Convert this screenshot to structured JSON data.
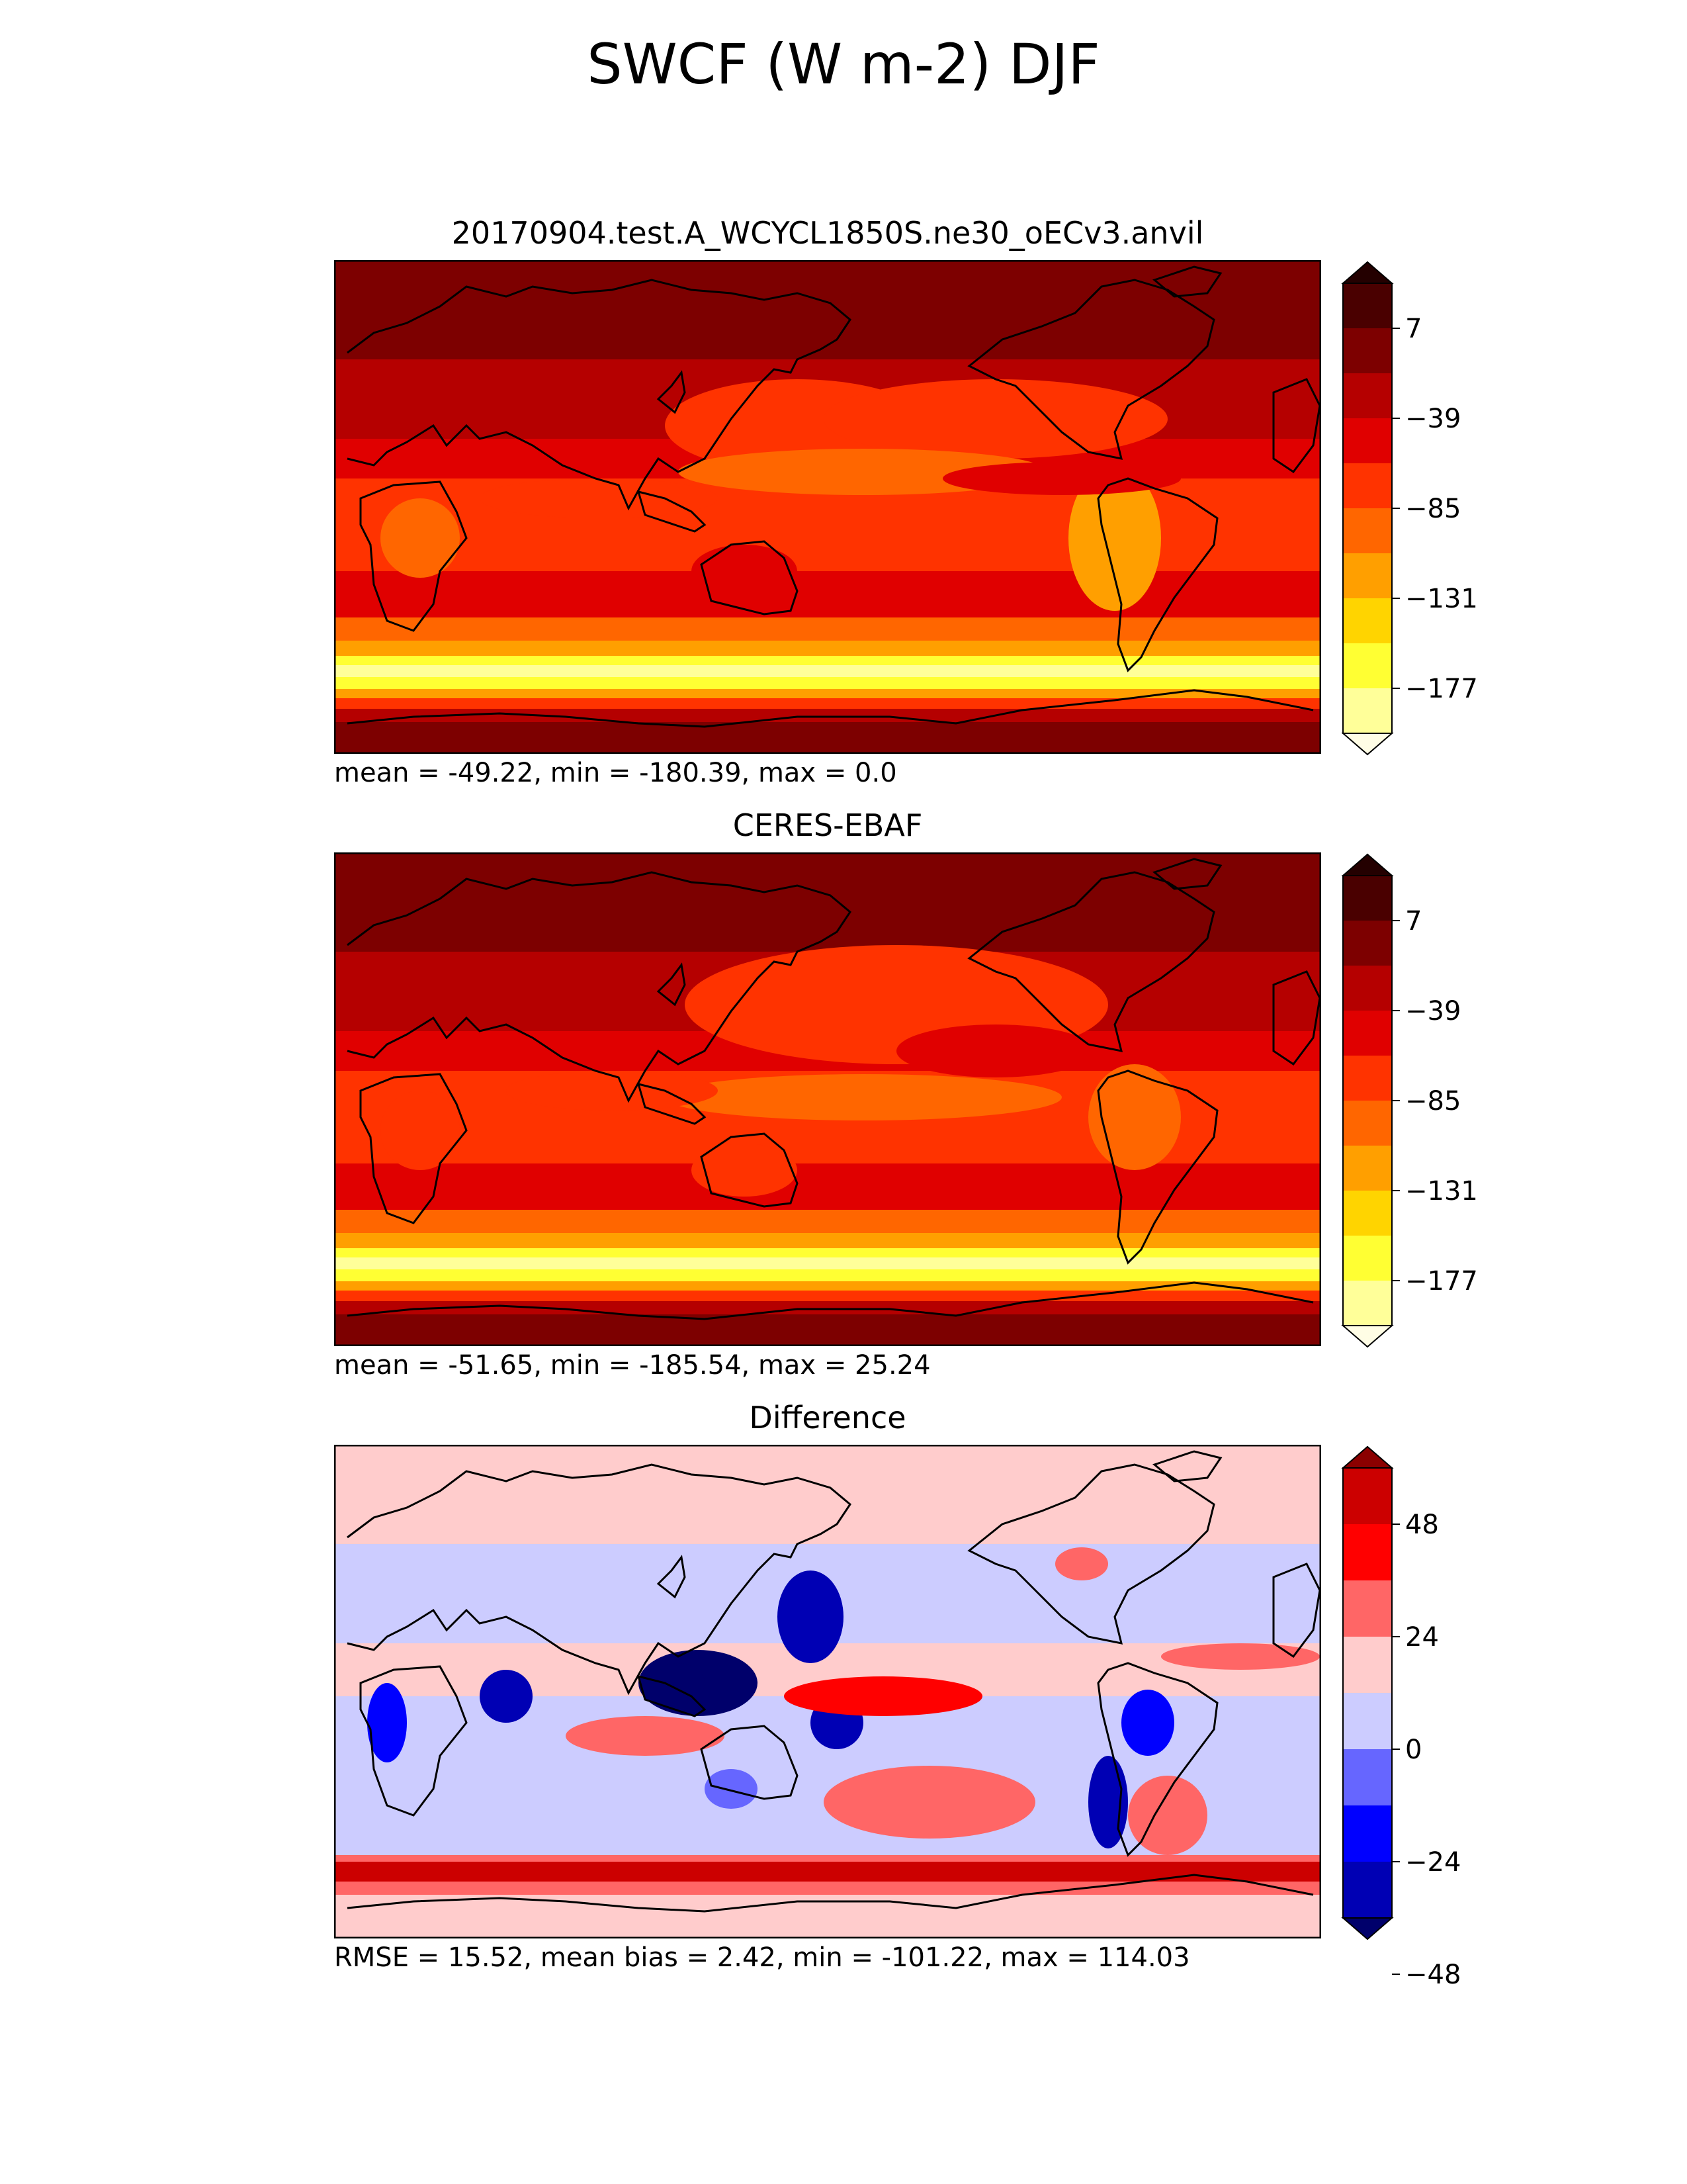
{
  "figure": {
    "title": "SWCF (W m-2) DJF"
  },
  "colors": {
    "sequential": [
      "#fffde5",
      "#ffff99",
      "#ffff33",
      "#ffd400",
      "#ff9f00",
      "#ff6600",
      "#ff3300",
      "#e00000",
      "#b50000",
      "#7d0000",
      "#4a0000",
      "#240000"
    ],
    "diverging": [
      "#00006b",
      "#0000b4",
      "#0000ff",
      "#6666ff",
      "#ccccff",
      "#ffcccc",
      "#ff6666",
      "#ff0000",
      "#cc0000",
      "#8b0000"
    ],
    "coastline": "#000000"
  },
  "panels": [
    {
      "title": "20170904.test.A_WCYCL1850S.ne30_oECv3.anvil",
      "stats": "mean = -49.22, min = -180.39, max = 0.0",
      "colormap": "sequential",
      "colorbar_ticks": [
        "7",
        "−39",
        "−85",
        "−131",
        "−177"
      ]
    },
    {
      "title": "CERES-EBAF",
      "stats": "mean = -51.65, min = -185.54, max = 25.24",
      "colormap": "sequential",
      "colorbar_ticks": [
        "7",
        "−39",
        "−85",
        "−131",
        "−177"
      ]
    },
    {
      "title": "Difference",
      "stats": "RMSE = 15.52, mean bias = 2.42, min = -101.22, max = 114.03",
      "colormap": "diverging",
      "colorbar_ticks": [
        "48",
        "24",
        "0",
        "−24",
        "−48"
      ]
    }
  ],
  "chart_data": [
    {
      "type": "heatmap",
      "title": "20170904.test.A_WCYCL1850S.ne30_oECv3.anvil",
      "projection": "global lon-lat map, centered on 180",
      "colorbar_levels": [
        -200,
        -177,
        -154,
        -131,
        -108,
        -85,
        -62,
        -39,
        -16,
        7,
        30
      ],
      "colorbar_extend": "both",
      "summary": {
        "mean": -49.22,
        "min": -180.39,
        "max": 0.0
      }
    },
    {
      "type": "heatmap",
      "title": "CERES-EBAF",
      "projection": "global lon-lat map, centered on 180",
      "colorbar_levels": [
        -200,
        -177,
        -154,
        -131,
        -108,
        -85,
        -62,
        -39,
        -16,
        7,
        30
      ],
      "colorbar_extend": "both",
      "summary": {
        "mean": -51.65,
        "min": -185.54,
        "max": 25.24
      }
    },
    {
      "type": "heatmap",
      "title": "Difference",
      "projection": "global lon-lat map, centered on 180",
      "colorbar_levels": [
        -60,
        -48,
        -36,
        -24,
        -12,
        0,
        12,
        24,
        36,
        48,
        60
      ],
      "colorbar_extend": "both",
      "summary": {
        "RMSE": 15.52,
        "mean_bias": 2.42,
        "min": -101.22,
        "max": 114.03
      }
    }
  ]
}
